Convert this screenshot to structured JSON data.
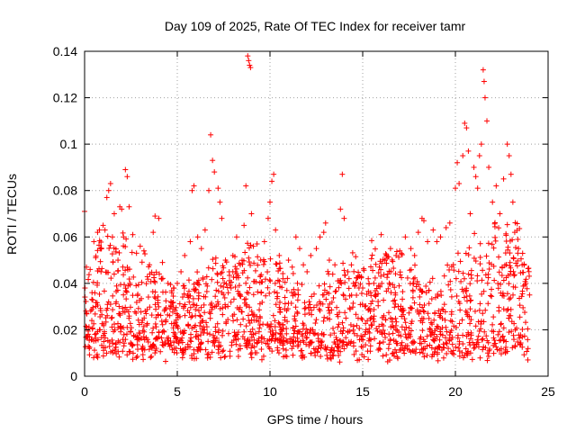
{
  "chart_data": {
    "type": "scatter",
    "title": "Day 109 of 2025, Rate Of TEC Index for receiver tamr",
    "xlabel": "GPS time / hours",
    "ylabel": "ROTI / TECUs",
    "xlim": [
      0,
      25
    ],
    "ylim": [
      0,
      0.14
    ],
    "x_ticks": [
      0,
      5,
      10,
      15,
      20,
      25
    ],
    "x_tick_labels": [
      "0",
      "5",
      "10",
      "15",
      "20",
      "25"
    ],
    "y_ticks": [
      0,
      0.02,
      0.04,
      0.06,
      0.08,
      0.1,
      0.12,
      0.14
    ],
    "y_tick_labels": [
      "0",
      "0.02",
      "0.04",
      "0.06",
      "0.08",
      "0.1",
      "0.12",
      "0.14"
    ],
    "grid": true,
    "marker": "plus",
    "color": "#ff0000",
    "x_data_range": [
      0,
      24
    ],
    "series": [
      {
        "points": [
          [
            0.0,
            0.071
          ],
          [
            0.1,
            0.047
          ],
          [
            0.3,
            0.046
          ],
          [
            0.4,
            0.036
          ],
          [
            0.5,
            0.058
          ],
          [
            0.7,
            0.062
          ],
          [
            0.8,
            0.063
          ],
          [
            0.9,
            0.055
          ],
          [
            1.0,
            0.065
          ],
          [
            1.1,
            0.063
          ],
          [
            1.2,
            0.077
          ],
          [
            1.3,
            0.08
          ],
          [
            1.4,
            0.083
          ],
          [
            1.5,
            0.06
          ],
          [
            1.6,
            0.07
          ],
          [
            1.8,
            0.05
          ],
          [
            1.9,
            0.073
          ],
          [
            2.0,
            0.072
          ],
          [
            2.1,
            0.06
          ],
          [
            2.2,
            0.089
          ],
          [
            2.3,
            0.086
          ],
          [
            2.4,
            0.073
          ],
          [
            2.6,
            0.061
          ],
          [
            2.8,
            0.053
          ],
          [
            3.0,
            0.056
          ],
          [
            3.2,
            0.054
          ],
          [
            3.5,
            0.048
          ],
          [
            3.7,
            0.062
          ],
          [
            3.8,
            0.069
          ],
          [
            4.0,
            0.068
          ],
          [
            4.2,
            0.049
          ],
          [
            4.5,
            0.04
          ],
          [
            4.8,
            0.038
          ],
          [
            5.0,
            0.04
          ],
          [
            5.2,
            0.045
          ],
          [
            5.4,
            0.052
          ],
          [
            5.7,
            0.058
          ],
          [
            5.8,
            0.08
          ],
          [
            5.9,
            0.082
          ],
          [
            6.1,
            0.06
          ],
          [
            6.3,
            0.055
          ],
          [
            6.5,
            0.063
          ],
          [
            6.7,
            0.08
          ],
          [
            6.8,
            0.104
          ],
          [
            6.9,
            0.093
          ],
          [
            7.0,
            0.088
          ],
          [
            7.2,
            0.081
          ],
          [
            7.3,
            0.075
          ],
          [
            7.4,
            0.068
          ],
          [
            7.6,
            0.05
          ],
          [
            7.8,
            0.045
          ],
          [
            8.0,
            0.052
          ],
          [
            8.2,
            0.06
          ],
          [
            8.4,
            0.048
          ],
          [
            8.6,
            0.065
          ],
          [
            8.7,
            0.082
          ],
          [
            8.8,
            0.138
          ],
          [
            8.85,
            0.136
          ],
          [
            8.9,
            0.134
          ],
          [
            8.95,
            0.133
          ],
          [
            9.0,
            0.07
          ],
          [
            9.1,
            0.056
          ],
          [
            9.3,
            0.057
          ],
          [
            9.5,
            0.05
          ],
          [
            9.7,
            0.058
          ],
          [
            9.9,
            0.068
          ],
          [
            10.0,
            0.075
          ],
          [
            10.1,
            0.084
          ],
          [
            10.2,
            0.087
          ],
          [
            10.3,
            0.063
          ],
          [
            10.5,
            0.052
          ],
          [
            10.7,
            0.042
          ],
          [
            11.0,
            0.05
          ],
          [
            11.2,
            0.047
          ],
          [
            11.4,
            0.06
          ],
          [
            11.6,
            0.055
          ],
          [
            11.8,
            0.048
          ],
          [
            12.0,
            0.045
          ],
          [
            12.2,
            0.052
          ],
          [
            12.5,
            0.055
          ],
          [
            12.7,
            0.06
          ],
          [
            12.9,
            0.062
          ],
          [
            13.0,
            0.066
          ],
          [
            13.2,
            0.05
          ],
          [
            13.5,
            0.048
          ],
          [
            13.8,
            0.072
          ],
          [
            13.9,
            0.087
          ],
          [
            14.0,
            0.068
          ],
          [
            14.2,
            0.045
          ],
          [
            14.5,
            0.04
          ],
          [
            14.8,
            0.038
          ],
          [
            15.0,
            0.038
          ],
          [
            15.3,
            0.042
          ],
          [
            15.6,
            0.04
          ],
          [
            15.9,
            0.047
          ],
          [
            16.0,
            0.061
          ],
          [
            16.2,
            0.05
          ],
          [
            16.5,
            0.055
          ],
          [
            16.8,
            0.052
          ],
          [
            17.0,
            0.054
          ],
          [
            17.3,
            0.06
          ],
          [
            17.6,
            0.055
          ],
          [
            17.8,
            0.052
          ],
          [
            18.0,
            0.062
          ],
          [
            18.2,
            0.068
          ],
          [
            18.3,
            0.067
          ],
          [
            18.5,
            0.058
          ],
          [
            18.8,
            0.063
          ],
          [
            19.0,
            0.058
          ],
          [
            19.2,
            0.06
          ],
          [
            19.5,
            0.064
          ],
          [
            19.7,
            0.066
          ],
          [
            20.0,
            0.081
          ],
          [
            20.1,
            0.092
          ],
          [
            20.2,
            0.083
          ],
          [
            20.4,
            0.095
          ],
          [
            20.5,
            0.109
          ],
          [
            20.6,
            0.107
          ],
          [
            20.7,
            0.097
          ],
          [
            20.8,
            0.07
          ],
          [
            21.0,
            0.09
          ],
          [
            21.1,
            0.086
          ],
          [
            21.2,
            0.081
          ],
          [
            21.3,
            0.095
          ],
          [
            21.4,
            0.1
          ],
          [
            21.5,
            0.132
          ],
          [
            21.55,
            0.127
          ],
          [
            21.6,
            0.12
          ],
          [
            21.7,
            0.11
          ],
          [
            21.8,
            0.09
          ],
          [
            22.0,
            0.075
          ],
          [
            22.2,
            0.082
          ],
          [
            22.4,
            0.07
          ],
          [
            22.6,
            0.085
          ],
          [
            22.8,
            0.1
          ],
          [
            22.9,
            0.095
          ],
          [
            23.0,
            0.087
          ],
          [
            23.1,
            0.075
          ],
          [
            23.2,
            0.062
          ],
          [
            23.4,
            0.055
          ],
          [
            23.6,
            0.048
          ],
          [
            23.8,
            0.04
          ],
          [
            24.0,
            0.035
          ]
        ]
      }
    ]
  }
}
